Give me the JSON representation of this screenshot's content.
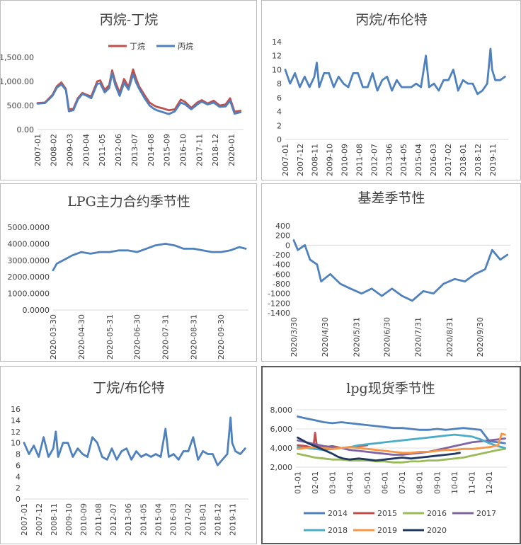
{
  "chart_data": [
    {
      "id": "c1",
      "type": "line",
      "title": "丙烷-丁烷",
      "legend": [
        "丁烷",
        "丙烷"
      ],
      "legend_placement": "top",
      "x_ticks": [
        "2007-01",
        "2008-02",
        "2009-03",
        "2010-04",
        "2011-05",
        "2012-06",
        "2013-07",
        "2014-08",
        "2015-09",
        "2016-10",
        "2017-11",
        "2018-12",
        "2020-01"
      ],
      "y_ticks": [
        "0.00",
        "500.00",
        "1,000.00",
        "1,500.00"
      ],
      "ylim": [
        0,
        1500
      ],
      "grid": false,
      "colors": {
        "丁烷": "#c0504d",
        "丙烷": "#4f81bd"
      },
      "series": [
        {
          "name": "丁烷",
          "x": [
            2007.0,
            2007.5,
            2008.0,
            2008.3,
            2008.6,
            2008.9,
            2009.1,
            2009.4,
            2009.7,
            2010.0,
            2010.3,
            2010.6,
            2011.0,
            2011.2,
            2011.5,
            2011.8,
            2012.0,
            2012.2,
            2012.5,
            2012.8,
            2013.1,
            2013.4,
            2013.6,
            2013.8,
            2014.2,
            2014.5,
            2014.8,
            2015.0,
            2015.4,
            2015.8,
            2016.2,
            2016.6,
            2016.9,
            2017.3,
            2017.7,
            2018.0,
            2018.4,
            2018.8,
            2019.2,
            2019.6,
            2019.9,
            2020.2,
            2020.6
          ],
          "y": [
            550,
            560,
            720,
            900,
            980,
            840,
            420,
            430,
            650,
            760,
            720,
            690,
            1000,
            1020,
            820,
            920,
            1230,
            1000,
            760,
            1050,
            880,
            1250,
            1060,
            900,
            700,
            560,
            500,
            470,
            440,
            400,
            420,
            620,
            570,
            450,
            560,
            610,
            540,
            600,
            500,
            520,
            650,
            370,
            390
          ]
        },
        {
          "name": "丙烷",
          "x": [
            2007.0,
            2007.5,
            2008.0,
            2008.3,
            2008.6,
            2008.9,
            2009.1,
            2009.4,
            2009.7,
            2010.0,
            2010.3,
            2010.6,
            2011.0,
            2011.2,
            2011.5,
            2011.8,
            2012.0,
            2012.2,
            2012.5,
            2012.8,
            2013.1,
            2013.4,
            2013.6,
            2013.8,
            2014.2,
            2014.5,
            2014.8,
            2015.0,
            2015.4,
            2015.8,
            2016.2,
            2016.6,
            2016.9,
            2017.3,
            2017.7,
            2018.0,
            2018.4,
            2018.8,
            2019.2,
            2019.6,
            2019.9,
            2020.2,
            2020.6
          ],
          "y": [
            540,
            550,
            700,
            870,
            940,
            820,
            380,
            400,
            620,
            740,
            700,
            650,
            950,
            960,
            770,
            860,
            1180,
            930,
            700,
            970,
            830,
            1150,
            980,
            850,
            640,
            500,
            430,
            400,
            360,
            320,
            380,
            560,
            520,
            420,
            520,
            580,
            520,
            560,
            470,
            480,
            600,
            330,
            360
          ]
        }
      ]
    },
    {
      "id": "c2",
      "type": "line",
      "title": "丙烷/布伦特",
      "x_ticks": [
        "2007-01",
        "2007-12",
        "2008-11",
        "2009-10",
        "2010-09",
        "2011-08",
        "2012-07",
        "2013-06",
        "2014-05",
        "2015-04",
        "2016-03",
        "2017-02",
        "2018-01",
        "2018-12",
        "2019-11"
      ],
      "y_ticks": [
        "0",
        "2",
        "4",
        "6",
        "8",
        "10",
        "12",
        "14"
      ],
      "ylim": [
        0,
        14
      ],
      "grid": false,
      "colors": {
        "line": "#4f81bd"
      },
      "series": [
        {
          "name": "",
          "x": [
            2007.0,
            2007.3,
            2007.6,
            2007.9,
            2008.2,
            2008.5,
            2008.8,
            2008.95,
            2009.1,
            2009.4,
            2009.7,
            2010.0,
            2010.3,
            2010.6,
            2010.9,
            2011.2,
            2011.5,
            2011.8,
            2012.1,
            2012.4,
            2012.7,
            2013.0,
            2013.3,
            2013.6,
            2013.9,
            2014.2,
            2014.5,
            2014.8,
            2015.1,
            2015.4,
            2015.7,
            2015.9,
            2016.2,
            2016.5,
            2016.8,
            2017.1,
            2017.4,
            2017.7,
            2018.0,
            2018.3,
            2018.6,
            2018.9,
            2019.2,
            2019.5,
            2019.7,
            2019.8,
            2020.0,
            2020.3,
            2020.6
          ],
          "y": [
            10,
            8,
            9.5,
            7.5,
            9,
            7.5,
            9,
            11,
            7.5,
            9.5,
            9.5,
            7.5,
            9,
            8,
            7.5,
            9.5,
            9.5,
            7.5,
            7.5,
            9.5,
            7,
            8.5,
            9,
            7,
            8.5,
            7.5,
            7.5,
            7.5,
            8,
            7.5,
            12,
            7.5,
            8,
            7,
            8.5,
            8.5,
            10,
            7,
            8.5,
            8,
            8,
            6.5,
            7,
            8,
            13,
            10,
            8.5,
            8.5,
            9
          ]
        }
      ]
    },
    {
      "id": "c3",
      "type": "line",
      "title": "LPG主力合约季节性",
      "x_ticks": [
        "2020-03-30",
        "2020-04-30",
        "2020-05-31",
        "2020-06-30",
        "2020-07-31",
        "2020-08-31",
        "2020-09-30"
      ],
      "y_ticks": [
        "0.0000",
        "1000.0000",
        "2000.0000",
        "3000.0000",
        "4000.0000",
        "5000.0000"
      ],
      "ylim": [
        0,
        5000
      ],
      "grid": false,
      "colors": {
        "line": "#4f81bd"
      },
      "series": [
        {
          "name": "",
          "x": [
            "2020-03-30",
            "2020-04-03",
            "2020-04-10",
            "2020-04-20",
            "2020-04-30",
            "2020-05-10",
            "2020-05-20",
            "2020-05-31",
            "2020-06-10",
            "2020-06-20",
            "2020-06-30",
            "2020-07-10",
            "2020-07-20",
            "2020-07-31",
            "2020-08-10",
            "2020-08-20",
            "2020-08-31",
            "2020-09-10",
            "2020-09-20",
            "2020-09-30",
            "2020-10-10",
            "2020-10-20",
            "2020-10-27"
          ],
          "y": [
            2400,
            2800,
            3000,
            3300,
            3500,
            3400,
            3500,
            3500,
            3600,
            3600,
            3500,
            3700,
            3900,
            4000,
            3900,
            3700,
            3700,
            3600,
            3500,
            3500,
            3600,
            3800,
            3700
          ]
        }
      ]
    },
    {
      "id": "c4",
      "type": "line",
      "title": "基差季节性",
      "x_ticks": [
        "2020/3/30",
        "2020/4/30",
        "2020/5/31",
        "2020/6/30",
        "2020/7/31",
        "2020/8/31",
        "2020/9/30"
      ],
      "y_ticks": [
        "-1400",
        "-1200",
        "-1000",
        "-800",
        "-600",
        "-400",
        "-200",
        "0",
        "200",
        "400"
      ],
      "ylim": [
        -1400,
        400
      ],
      "grid": false,
      "colors": {
        "line": "#4f81bd"
      },
      "series": [
        {
          "name": "",
          "x": [
            "2020-03-30",
            "2020-04-03",
            "2020-04-10",
            "2020-04-15",
            "2020-04-22",
            "2020-04-26",
            "2020-05-05",
            "2020-05-15",
            "2020-05-25",
            "2020-06-05",
            "2020-06-15",
            "2020-06-25",
            "2020-07-05",
            "2020-07-15",
            "2020-07-25",
            "2020-08-05",
            "2020-08-15",
            "2020-08-25",
            "2020-09-05",
            "2020-09-15",
            "2020-09-25",
            "2020-10-05",
            "2020-10-12",
            "2020-10-20",
            "2020-10-27"
          ],
          "y": [
            100,
            -100,
            0,
            -300,
            -400,
            -750,
            -600,
            -800,
            -900,
            -1000,
            -900,
            -1050,
            -900,
            -1050,
            -1150,
            -950,
            -1000,
            -800,
            -700,
            -750,
            -600,
            -500,
            -100,
            -300,
            -200
          ]
        }
      ]
    },
    {
      "id": "c5",
      "type": "line",
      "title": "丁烷/布伦特",
      "x_ticks": [
        "2007-01",
        "2007-12",
        "2008-11",
        "2009-10",
        "2010-09",
        "2011-08",
        "2012-07",
        "2013-06",
        "2014-05",
        "2015-04",
        "2016-03",
        "2017-02",
        "2018-01",
        "2018-12",
        "2019-11"
      ],
      "y_ticks": [
        "0",
        "2",
        "4",
        "6",
        "8",
        "10",
        "12",
        "14",
        "16"
      ],
      "ylim": [
        0,
        16
      ],
      "grid": false,
      "colors": {
        "line": "#4f81bd"
      },
      "series": [
        {
          "name": "",
          "x": [
            2007.0,
            2007.3,
            2007.6,
            2007.9,
            2008.2,
            2008.5,
            2008.8,
            2008.95,
            2009.1,
            2009.4,
            2009.7,
            2010.0,
            2010.3,
            2010.6,
            2010.9,
            2011.2,
            2011.5,
            2011.8,
            2012.1,
            2012.4,
            2012.7,
            2013.0,
            2013.3,
            2013.6,
            2013.9,
            2014.2,
            2014.5,
            2014.8,
            2015.1,
            2015.4,
            2015.7,
            2015.9,
            2016.2,
            2016.5,
            2016.8,
            2017.1,
            2017.4,
            2017.7,
            2018.0,
            2018.3,
            2018.6,
            2018.9,
            2019.2,
            2019.5,
            2019.7,
            2019.8,
            2020.0,
            2020.3,
            2020.6
          ],
          "y": [
            10,
            8,
            9.5,
            7.5,
            11,
            7.5,
            9,
            12,
            7.5,
            10,
            10,
            7.5,
            9,
            8,
            7.5,
            11,
            10,
            7.5,
            7,
            9,
            7,
            8.5,
            9,
            7,
            8.5,
            7.5,
            8,
            7.5,
            8,
            7.5,
            12.5,
            7.5,
            8,
            7,
            8.5,
            8.5,
            11,
            7,
            8.5,
            8,
            8,
            6,
            7,
            8,
            14.5,
            10,
            8.5,
            8,
            9
          ]
        }
      ]
    },
    {
      "id": "c6",
      "type": "line",
      "title": "lpg现货季节性",
      "x_ticks": [
        "01-01",
        "02-01",
        "03-01",
        "04-01",
        "05-01",
        "06-01",
        "07-01",
        "08-01",
        "09-01",
        "10-01",
        "11-01",
        "12-01"
      ],
      "y_ticks": [
        "2,000",
        "4,000",
        "6,000",
        "8,000"
      ],
      "ylim": [
        2000,
        8000
      ],
      "grid": true,
      "legend": [
        "2014",
        "2015",
        "2016",
        "2017",
        "2018",
        "2019",
        "2020"
      ],
      "legend_placement": "bottom",
      "colors": {
        "2014": "#4f81bd",
        "2015": "#c0504d",
        "2016": "#9bbb59",
        "2017": "#8064a2",
        "2018": "#4bacc6",
        "2019": "#f79646",
        "2020": "#1f3864"
      },
      "series": [
        {
          "name": "2014",
          "x": [
            1,
            1.5,
            2,
            2.5,
            3,
            3.5,
            4,
            4.5,
            5,
            5.5,
            6,
            6.5,
            7,
            7.5,
            8,
            8.5,
            9,
            9.5,
            10,
            10.5,
            11,
            11.5,
            12,
            12.5,
            12.9
          ],
          "y": [
            7300,
            7100,
            6900,
            6700,
            6600,
            6700,
            6600,
            6500,
            6400,
            6300,
            6200,
            6100,
            6100,
            6000,
            5900,
            5900,
            6000,
            5900,
            6000,
            6100,
            6000,
            5900,
            4700,
            4600,
            4500
          ]
        },
        {
          "name": "2015",
          "x": [
            1,
            1.5,
            1.9,
            2,
            2.1,
            2.5,
            3,
            3.5,
            4,
            4.5,
            5
          ],
          "y": [
            4300,
            4200,
            4000,
            5600,
            4200,
            4100,
            4200,
            4000,
            4100,
            4200,
            4300
          ]
        },
        {
          "name": "2016",
          "x": [
            1,
            1.5,
            2,
            2.5,
            3,
            3.5,
            4,
            4.5,
            5,
            5.5,
            6,
            6.5,
            7,
            7.5,
            8,
            8.5,
            9,
            9.5,
            10,
            10.5,
            11,
            11.5,
            12,
            12.5,
            12.9
          ],
          "y": [
            3400,
            3200,
            3000,
            2900,
            2800,
            2800,
            2700,
            2700,
            2700,
            2600,
            2600,
            2500,
            2500,
            2600,
            2600,
            2700,
            2700,
            2800,
            2900,
            3000,
            3200,
            3400,
            3600,
            3800,
            3900
          ]
        },
        {
          "name": "2017",
          "x": [
            1,
            1.5,
            2,
            2.5,
            3,
            3.5,
            4,
            4.5,
            5,
            5.5,
            6,
            6.5,
            7,
            7.5,
            8,
            8.5,
            9,
            9.5,
            10,
            10.5,
            11,
            11.5,
            12,
            12.5,
            12.9
          ],
          "y": [
            4800,
            4600,
            4400,
            4200,
            4100,
            4000,
            3800,
            3700,
            3600,
            3500,
            3400,
            3300,
            3300,
            3400,
            3500,
            3600,
            3800,
            4000,
            4200,
            4400,
            4600,
            4700,
            4800,
            4900,
            5000
          ]
        },
        {
          "name": "2018",
          "x": [
            1,
            1.5,
            2,
            2.5,
            3,
            3.5,
            4,
            4.5,
            5,
            5.5,
            6,
            6.5,
            7,
            7.5,
            8,
            8.5,
            9,
            9.5,
            10,
            10.5,
            11,
            11.5,
            12,
            12.5,
            12.9
          ],
          "y": [
            4100,
            4000,
            3900,
            3800,
            3900,
            4000,
            4100,
            4300,
            4400,
            4500,
            4600,
            4700,
            4800,
            4900,
            5000,
            5100,
            5200,
            5300,
            5400,
            5300,
            5200,
            4900,
            4500,
            4200,
            4000
          ]
        },
        {
          "name": "2019",
          "x": [
            1,
            1.5,
            2,
            2.5,
            3,
            3.5,
            4,
            4.5,
            5,
            5.5,
            6,
            6.5,
            7,
            7.5,
            8,
            8.5,
            9,
            9.5,
            10,
            10.5,
            11,
            11.5,
            12,
            12.5,
            12.7,
            12.9
          ],
          "y": [
            3900,
            4000,
            4100,
            4000,
            3900,
            4000,
            4100,
            4000,
            3900,
            3800,
            3700,
            3600,
            3500,
            3500,
            3600,
            3600,
            3700,
            3800,
            3800,
            3900,
            3900,
            4000,
            4100,
            4300,
            5500,
            5400
          ]
        },
        {
          "name": "2020",
          "x": [
            1,
            1.3,
            1.6,
            2,
            2.5,
            3,
            3.3,
            3.6,
            4,
            4.5,
            5,
            5.5,
            6,
            6.5,
            7,
            7.5,
            8,
            8.5,
            9,
            9.5,
            10,
            10.3
          ],
          "y": [
            5100,
            4800,
            4500,
            4200,
            3800,
            3400,
            3100,
            2900,
            2800,
            2900,
            2800,
            2700,
            2800,
            2900,
            3000,
            2900,
            3000,
            3100,
            3200,
            3300,
            3400,
            3500
          ]
        }
      ]
    }
  ]
}
